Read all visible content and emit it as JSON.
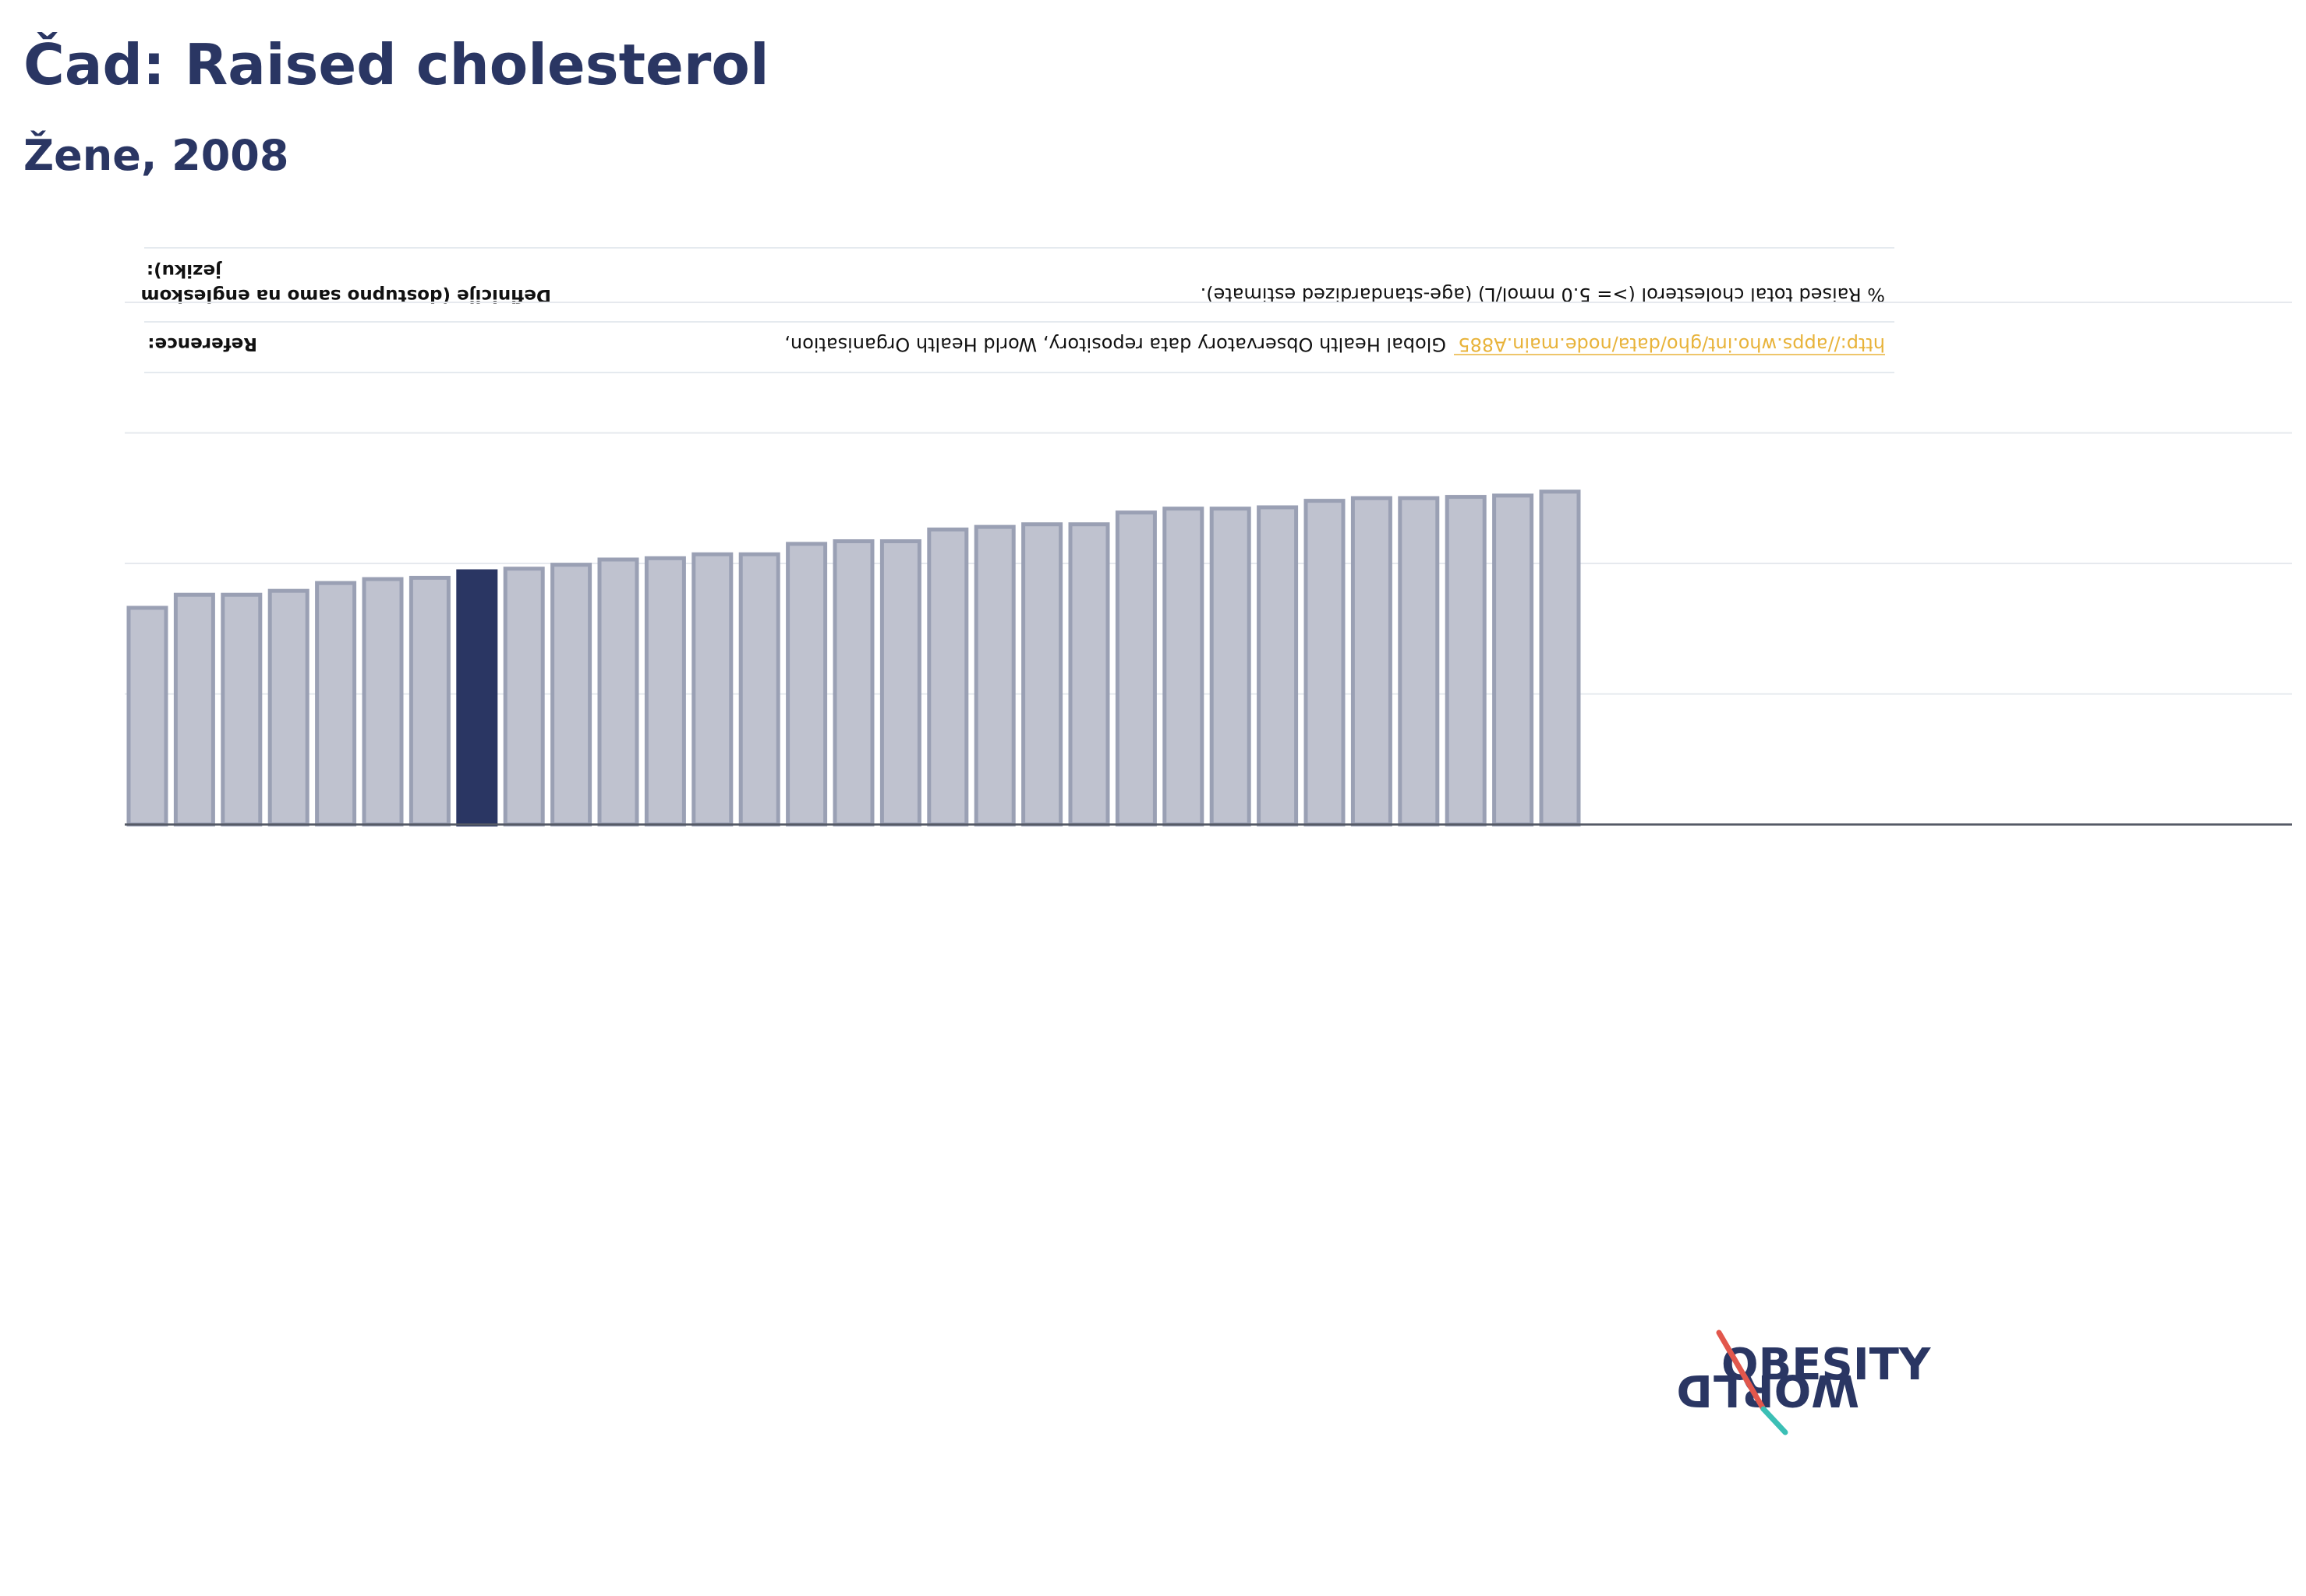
{
  "page": {
    "title": "Čad: Raised cholesterol",
    "subtitle": "Žene, 2008"
  },
  "info": {
    "definition_label_line1": "Definicije (dostupno samo na engleskom",
    "definition_label_line2": "jeziku):",
    "definition_text": "% Raised total cholesterol (>= 5.0 mmol/L) (age-standardized estimate).",
    "reference_label": "Reference:",
    "reference_text": "Global Health Observatory data repository, World Health Organisation,",
    "reference_link": "http://apps.who.int/gho/data/node.main.A885"
  },
  "logo": {
    "line1": "OBESITY",
    "line2": "WORLD"
  },
  "colors": {
    "title": "#2a3663",
    "highlight_bar": "#2a3663",
    "bar_fill": "#bfc2cf",
    "bar_stroke": "#9aa0b4",
    "link": "#e8b33a",
    "logo_red": "#e2574c",
    "logo_teal": "#3bbfb5"
  },
  "chart_data": {
    "type": "bar",
    "title": "Čad: Raised cholesterol",
    "subtitle": "Žene, 2008",
    "xlabel": "",
    "ylabel": "",
    "ylim": [
      0,
      40
    ],
    "grid": true,
    "highlight_index": 7,
    "values": [
      16.6,
      17.6,
      17.6,
      17.9,
      18.5,
      18.8,
      18.9,
      19.4,
      19.6,
      19.9,
      20.3,
      20.4,
      20.7,
      20.7,
      21.5,
      21.7,
      21.7,
      22.6,
      22.8,
      23.0,
      23.0,
      23.9,
      24.2,
      24.2,
      24.3,
      24.8,
      25.0,
      25.0,
      25.1,
      25.2,
      25.5
    ]
  }
}
